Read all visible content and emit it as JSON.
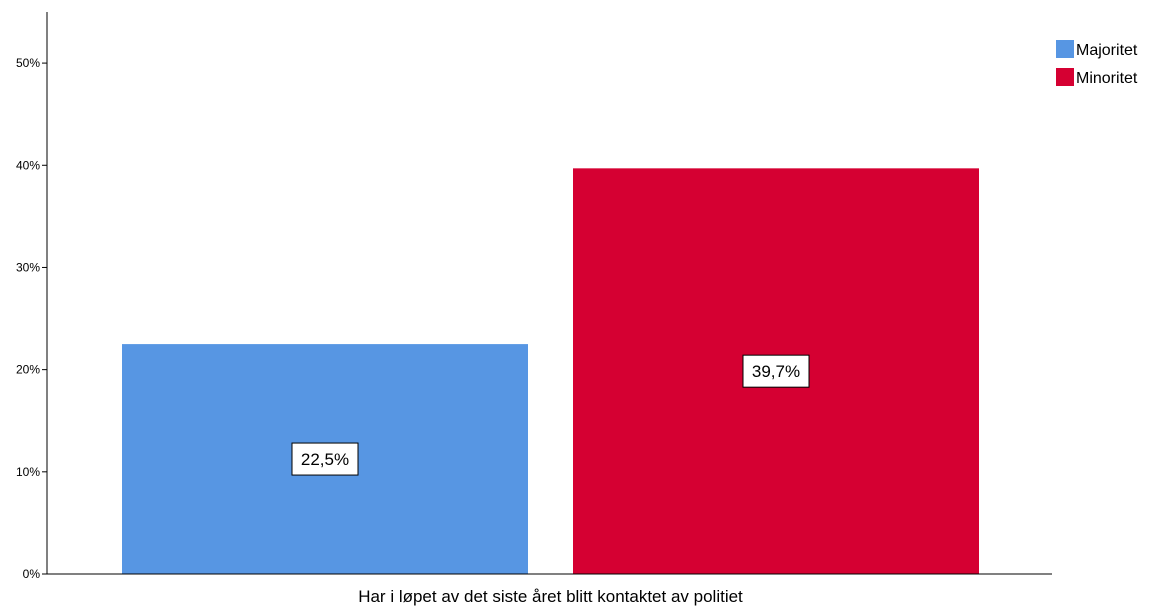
{
  "chart_data": {
    "type": "bar",
    "categories": [
      "Har i løpet av det siste året blitt kontaktet av politiet"
    ],
    "series": [
      {
        "name": "Majoritet",
        "values": [
          22.5
        ],
        "color": "#5796E3",
        "data_label": "22,5%"
      },
      {
        "name": "Minoritet",
        "values": [
          39.7
        ],
        "color": "#D50032",
        "data_label": "39,7%"
      }
    ],
    "xlabel": "Har i løpet av det siste året blitt kontaktet av politiet",
    "ylabel": "",
    "ylim": [
      0,
      55
    ],
    "y_ticks": [
      0,
      10,
      20,
      30,
      40,
      50
    ],
    "y_tick_labels": [
      "0%",
      "10%",
      "20%",
      "30%",
      "40%",
      "50%"
    ],
    "grid": false,
    "legend_position": "top-right"
  }
}
